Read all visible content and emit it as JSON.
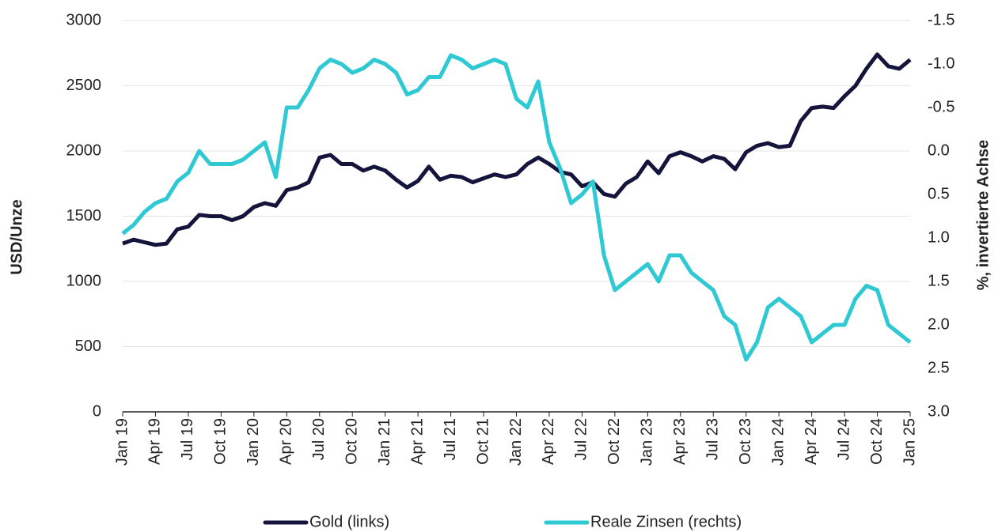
{
  "chart_data": {
    "type": "line",
    "categories": [
      "Jan 19",
      null,
      null,
      "Apr 19",
      null,
      null,
      "Jul 19",
      null,
      null,
      "Oct 19",
      null,
      null,
      "Jan 20",
      null,
      null,
      "Apr 20",
      null,
      null,
      "Jul 20",
      null,
      null,
      "Oct 20",
      null,
      null,
      "Jan 21",
      null,
      null,
      "Apr 21",
      null,
      null,
      "Jul 21",
      null,
      null,
      "Oct 21",
      null,
      null,
      "Jan 22",
      null,
      null,
      "Apr 22",
      null,
      null,
      "Jul 22",
      null,
      null,
      "Oct 22",
      null,
      null,
      "Jan 23",
      null,
      null,
      "Apr 23",
      null,
      null,
      "Jul 23",
      null,
      null,
      "Oct 23",
      null,
      null,
      "Jan 24",
      null,
      null,
      "Apr 24",
      null,
      null,
      "Jul 24",
      null,
      null,
      "Oct 24",
      null,
      null,
      "Jan 25"
    ],
    "series": [
      {
        "name": "Gold (links)",
        "color": "#14143c",
        "axis": "y",
        "values": [
          1290,
          1320,
          1300,
          1280,
          1290,
          1400,
          1420,
          1510,
          1500,
          1500,
          1470,
          1500,
          1570,
          1600,
          1580,
          1700,
          1720,
          1760,
          1950,
          1970,
          1900,
          1900,
          1850,
          1880,
          1850,
          1780,
          1720,
          1770,
          1880,
          1780,
          1810,
          1800,
          1760,
          1790,
          1820,
          1800,
          1820,
          1900,
          1950,
          1900,
          1840,
          1820,
          1730,
          1760,
          1670,
          1650,
          1750,
          1800,
          1920,
          1830,
          1960,
          1990,
          1960,
          1920,
          1960,
          1940,
          1860,
          1990,
          2040,
          2060,
          2030,
          2040,
          2230,
          2330,
          2340,
          2330,
          2420,
          2500,
          2630,
          2740,
          2650,
          2630,
          2700
        ]
      },
      {
        "name": "Reale Zinsen (rechts)",
        "color": "#2ec9d3",
        "axis": "y2",
        "values": [
          0.95,
          0.85,
          0.7,
          0.6,
          0.55,
          0.35,
          0.25,
          0.0,
          0.15,
          0.15,
          0.15,
          0.1,
          0.0,
          -0.1,
          0.3,
          -0.5,
          -0.5,
          -0.7,
          -0.95,
          -1.05,
          -1.0,
          -0.9,
          -0.95,
          -1.05,
          -1.0,
          -0.9,
          -0.65,
          -0.7,
          -0.85,
          -0.85,
          -1.1,
          -1.05,
          -0.95,
          -1.0,
          -1.05,
          -1.0,
          -0.6,
          -0.5,
          -0.8,
          -0.1,
          0.2,
          0.6,
          0.5,
          0.35,
          1.2,
          1.6,
          1.5,
          1.4,
          1.3,
          1.5,
          1.2,
          1.2,
          1.4,
          1.5,
          1.6,
          1.9,
          2.0,
          2.4,
          2.2,
          1.8,
          1.7,
          1.8,
          1.9,
          2.2,
          2.1,
          2.0,
          2.0,
          1.7,
          1.55,
          1.6,
          2.0,
          2.1,
          2.2
        ]
      }
    ],
    "ylabel": "USD/Unze",
    "y2label": "%, invertierte Achse",
    "ylim": [
      0,
      3000
    ],
    "yticks": [
      0,
      500,
      1000,
      1500,
      2000,
      2500,
      3000
    ],
    "y2lim": [
      3.0,
      -1.5
    ],
    "y2ticks": [
      {
        "value": 3.0,
        "label": "3.0"
      },
      2.5,
      {
        "value": 2.0,
        "label": "2.0"
      },
      1.5,
      {
        "value": 1.0,
        "label": "1.0"
      },
      0.5,
      {
        "value": 0.0,
        "label": "0.0"
      },
      -0.5,
      {
        "value": -1.0,
        "label": "-1.0"
      },
      -1.5
    ],
    "grid": true,
    "legend": "bottom"
  }
}
